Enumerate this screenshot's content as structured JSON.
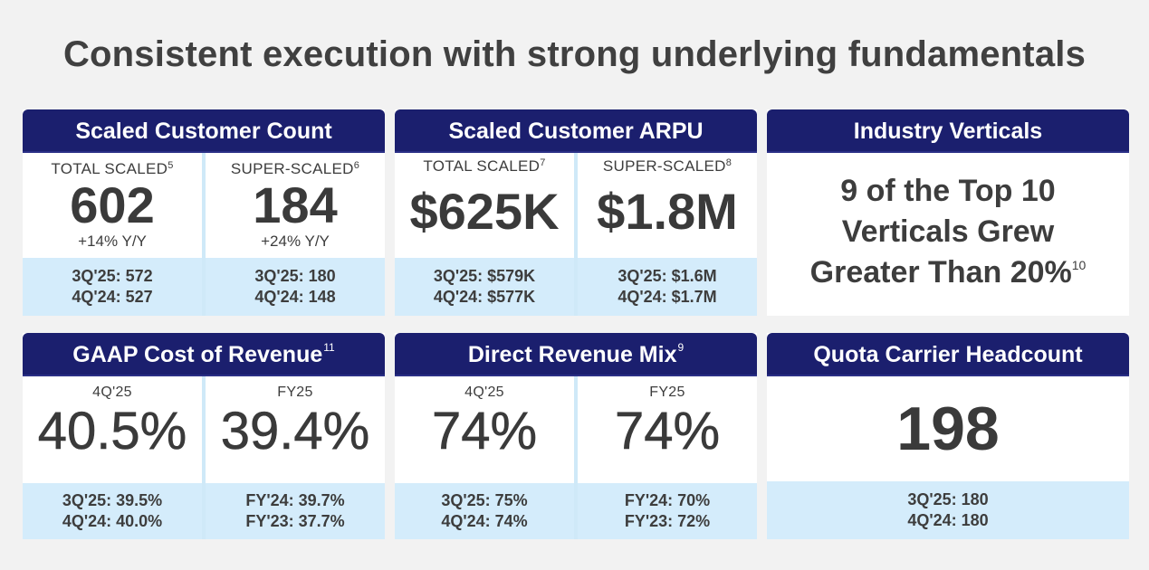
{
  "title": "Consistent execution with strong underlying fundamentals",
  "cards": {
    "scaled_count": {
      "header": "Scaled Customer Count",
      "left": {
        "label": "TOTAL SCALED",
        "footnote": "5",
        "value": "602",
        "change": "+14% Y/Y",
        "prior1": "3Q'25: 572",
        "prior2": "4Q'24: 527"
      },
      "right": {
        "label": "SUPER-SCALED",
        "footnote": "6",
        "value": "184",
        "change": "+24% Y/Y",
        "prior1": "3Q'25: 180",
        "prior2": "4Q'24: 148"
      }
    },
    "arpu": {
      "header": "Scaled Customer ARPU",
      "left": {
        "label": "TOTAL SCALED",
        "footnote": "7",
        "value": "$625K",
        "prior1": "3Q'25: $579K",
        "prior2": "4Q'24: $577K"
      },
      "right": {
        "label": "SUPER-SCALED",
        "footnote": "8",
        "value": "$1.8M",
        "prior1": "3Q'25: $1.6M",
        "prior2": "4Q'24: $1.7M"
      }
    },
    "verticals": {
      "header": "Industry Verticals",
      "line1": "9 of the Top 10",
      "line2": "Verticals Grew",
      "line3": "Greater Than 20%",
      "footnote": "10"
    },
    "gaap": {
      "header": "GAAP Cost of Revenue",
      "footnote": "11",
      "left": {
        "label": "4Q'25",
        "value": "40.5%",
        "prior1": "3Q'25: 39.5%",
        "prior2": "4Q'24: 40.0%"
      },
      "right": {
        "label": "FY25",
        "value": "39.4%",
        "prior1": "FY'24: 39.7%",
        "prior2": "FY'23: 37.7%"
      }
    },
    "direct_mix": {
      "header": "Direct Revenue Mix",
      "footnote": "9",
      "left": {
        "label": "4Q'25",
        "value": "74%",
        "prior1": "3Q'25: 75%",
        "prior2": "4Q'24: 74%"
      },
      "right": {
        "label": "FY25",
        "value": "74%",
        "prior1": "FY'24: 70%",
        "prior2": "FY'23: 72%"
      }
    },
    "quota": {
      "header": "Quota Carrier Headcount",
      "value": "198",
      "prior1": "3Q'25: 180",
      "prior2": "4Q'24: 180"
    }
  },
  "colors": {
    "header_bg": "#1b1f6e",
    "band_bg": "#d4ecfb",
    "page_bg": "#f2f2f2"
  }
}
